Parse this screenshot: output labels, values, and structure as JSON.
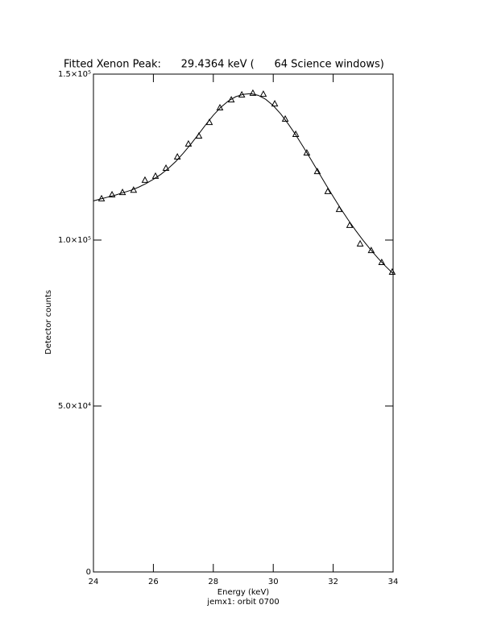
{
  "chart_data": {
    "type": "scatter",
    "title": "Fitted Xenon Peak:      29.4364 keV (      64 Science windows)",
    "x_label": "Energy (keV)",
    "y_label": "Detector counts",
    "footer": "jemx1: orbit 0700",
    "xlim": [
      24,
      34
    ],
    "xticks": [
      24,
      26,
      28,
      30,
      32,
      34
    ],
    "ylim": [
      0,
      150000
    ],
    "yticks": [
      0,
      {
        "value": 50000,
        "label": "5.0×10⁴"
      },
      {
        "value": 100000,
        "label": "1.0×10⁵"
      },
      {
        "value": 150000,
        "label": "1.5×10⁵"
      }
    ],
    "series": [
      {
        "marker": "triangle",
        "color": "#000000",
        "x": [
          24.27,
          24.62,
          24.97,
          25.34,
          25.72,
          26.07,
          26.42,
          26.8,
          27.17,
          27.52,
          27.87,
          28.22,
          28.6,
          28.95,
          29.32,
          29.67,
          30.05,
          30.4,
          30.75,
          31.12,
          31.47,
          31.82,
          32.2,
          32.55,
          32.9,
          33.27,
          33.62,
          33.97
        ],
        "values": [
          112400,
          113600,
          114300,
          115000,
          118000,
          119200,
          121600,
          125000,
          128900,
          131300,
          135400,
          139800,
          142200,
          143700,
          144200,
          143900,
          141000,
          136400,
          131800,
          126200,
          120600,
          114600,
          109200,
          104400,
          98800,
          96800,
          93200,
          90300
        ]
      },
      {
        "line": true,
        "color": "#000000",
        "x": [
          24,
          24.25,
          24.5,
          24.75,
          25,
          25.25,
          25.5,
          25.75,
          26,
          26.25,
          26.5,
          26.75,
          27,
          27.25,
          27.5,
          27.75,
          28,
          28.25,
          28.5,
          28.75,
          29,
          29.25,
          29.5,
          29.75,
          30,
          30.25,
          30.5,
          30.75,
          31,
          31.25,
          31.5,
          31.75,
          32,
          32.25,
          32.5,
          32.75,
          33,
          33.25,
          33.5,
          33.75,
          34
        ],
        "values": [
          111800,
          112400,
          113000,
          113600,
          114300,
          115000,
          115900,
          117000,
          118300,
          119800,
          121600,
          123700,
          126200,
          128900,
          131800,
          134800,
          137600,
          140000,
          141900,
          143200,
          143900,
          144100,
          143600,
          142400,
          140500,
          138000,
          135000,
          131700,
          128100,
          124400,
          120600,
          116800,
          113100,
          109500,
          106100,
          102900,
          99900,
          97100,
          94500,
          92100,
          89900
        ]
      }
    ]
  }
}
